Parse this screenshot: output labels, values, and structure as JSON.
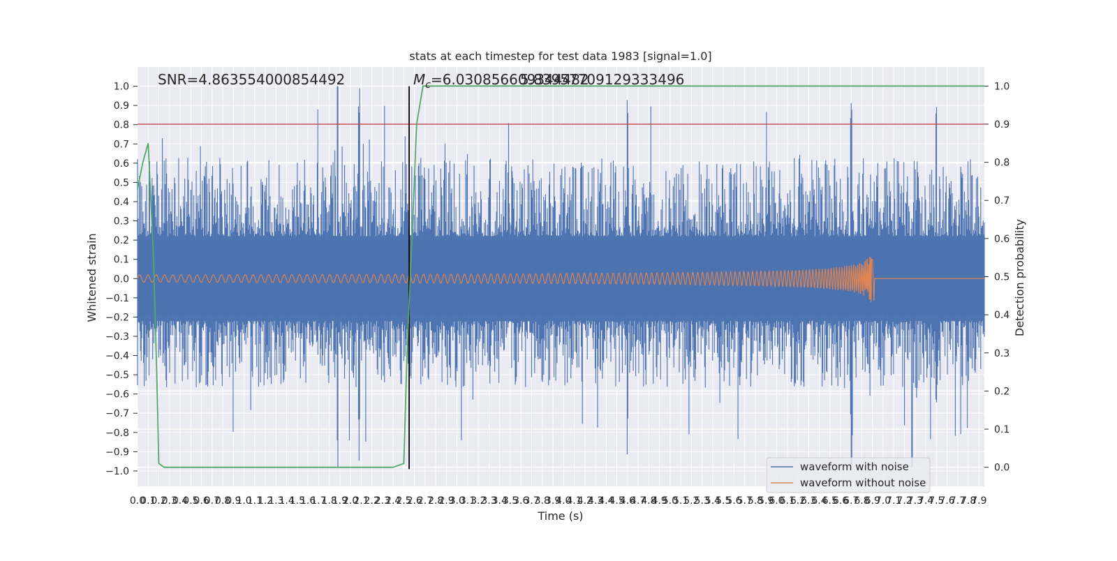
{
  "chart_data": {
    "type": "line",
    "title": "stats at each timestep for test data 1983 [signal=1.0]",
    "xlabel": "Time (s)",
    "ylabel_left": "Whitened strain",
    "ylabel_right": "Detection probability",
    "xlim": [
      0.0,
      7.95
    ],
    "ylim_left": [
      -1.08,
      1.1
    ],
    "ylim_right": [
      -0.05,
      1.05
    ],
    "x_ticks": [
      "0.0",
      "0.1",
      "0.2",
      "0.3",
      "0.4",
      "0.5",
      "0.6",
      "0.7",
      "0.8",
      "0.9",
      "1.0",
      "1.1",
      "1.2",
      "1.3",
      "1.4",
      "1.5",
      "1.6",
      "1.7",
      "1.8",
      "1.9",
      "2.0",
      "2.1",
      "2.2",
      "2.3",
      "2.4",
      "2.5",
      "2.6",
      "2.7",
      "2.8",
      "2.9",
      "3.0",
      "3.1",
      "3.2",
      "3.3",
      "3.4",
      "3.5",
      "3.6",
      "3.7",
      "3.8",
      "3.9",
      "4.0",
      "4.1",
      "4.2",
      "4.3",
      "4.4",
      "4.5",
      "4.6",
      "4.7",
      "4.8",
      "4.9",
      "5.0",
      "5.1",
      "5.2",
      "5.3",
      "5.4",
      "5.5",
      "5.6",
      "5.7",
      "5.8",
      "5.9",
      "6.0",
      "6.1",
      "6.2",
      "6.3",
      "6.4",
      "6.5",
      "6.6",
      "6.7",
      "6.8",
      "6.9",
      "7.0",
      "7.1",
      "7.2",
      "7.3",
      "7.4",
      "7.5",
      "7.6",
      "7.7",
      "7.8",
      "7.9"
    ],
    "y_ticks_left": [
      "1.0",
      "0.9",
      "0.8",
      "0.7",
      "0.6",
      "0.5",
      "0.4",
      "0.3",
      "0.2",
      "0.1",
      "0.0",
      "−0.1",
      "−0.2",
      "−0.3",
      "−0.4",
      "−0.5",
      "−0.6",
      "−0.7",
      "−0.8",
      "−0.9",
      "−1.0"
    ],
    "y_ticks_right": [
      "1.0",
      "0.9",
      "0.8",
      "0.7",
      "0.6",
      "0.5",
      "0.4",
      "0.3",
      "0.2",
      "0.1",
      "0.0"
    ],
    "annotations": {
      "snr": "SNR=4.863554000854492",
      "mc_prefix": "M",
      "mc_subscript": "c",
      "mc_value": "=6.030856609344482",
      "mc_overlap": "5.83957709129333496"
    },
    "series": [
      {
        "name": "waveform with noise",
        "color": "#4c72b0",
        "type": "noise",
        "envelope_top": 0.56,
        "envelope_bottom": -0.5,
        "peak_top": 1.0,
        "peak_bottom": -0.98
      },
      {
        "name": "waveform without noise",
        "color": "#dd8452",
        "type": "chirp",
        "start": 0.0,
        "merger": 6.9,
        "peak_amplitude": 0.13
      },
      {
        "name": "detection probability",
        "color": "#55a868",
        "axis": "right",
        "x": [
          0.0,
          0.05,
          0.1,
          0.15,
          0.18,
          0.2,
          0.25,
          2.4,
          2.45,
          2.5,
          2.53,
          2.58,
          2.62,
          2.68,
          7.95
        ],
        "y": [
          0.73,
          0.8,
          0.85,
          0.55,
          0.25,
          0.01,
          0.0,
          0.0,
          0.005,
          0.01,
          0.3,
          0.62,
          0.9,
          1.0,
          1.0
        ]
      }
    ],
    "reference_lines": {
      "threshold_right": 0.9,
      "threshold_color": "#c44e52",
      "detection_time": 2.55,
      "detection_color": "#000000"
    },
    "legend": {
      "location": "lower-right",
      "entries": [
        "waveform with noise",
        "waveform without noise"
      ]
    }
  }
}
